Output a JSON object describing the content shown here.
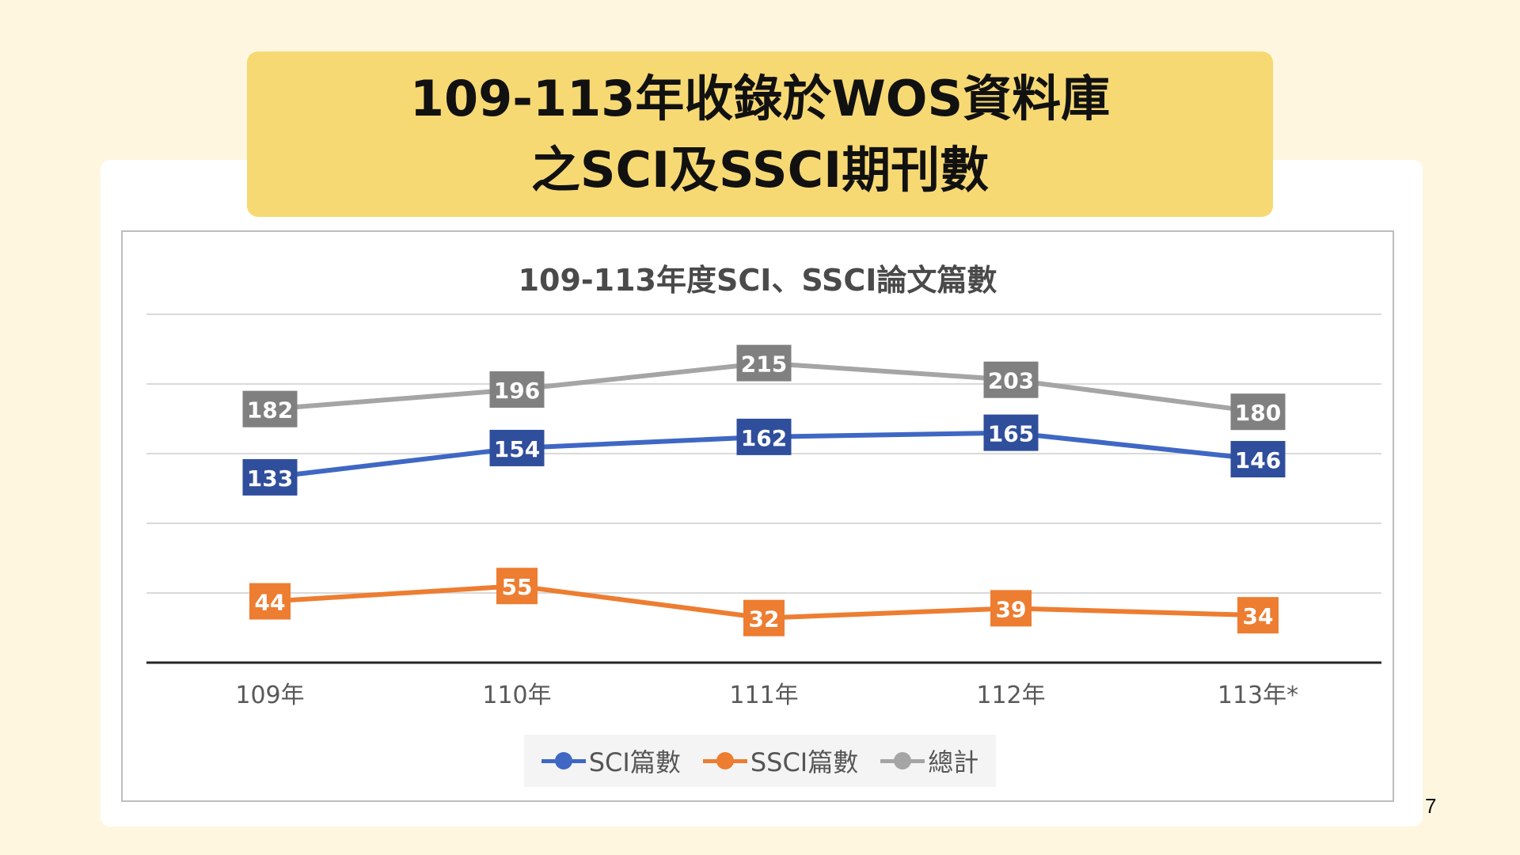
{
  "slide": {
    "title_line1": "109-113年收錄於WOS資料庫",
    "title_line2": "之SCI及SSCI期刊數",
    "page_number": "7"
  },
  "colors": {
    "background": "#FEF6DF",
    "title_box": "#F7D974",
    "sci": "#3F67C4",
    "sci_label": "#2F4E9C",
    "ssci": "#ED7D31",
    "total": "#A5A5A5",
    "total_label": "#808080"
  },
  "chart_data": {
    "type": "line",
    "title": "109-113年度SCI、SSCI論文篇數",
    "categories": [
      "109年",
      "110年",
      "111年",
      "112年",
      "113年*"
    ],
    "series": [
      {
        "name": "SCI篇數",
        "values": [
          133,
          154,
          162,
          165,
          146
        ],
        "color": "#3F67C4"
      },
      {
        "name": "SSCI篇數",
        "values": [
          44,
          55,
          32,
          39,
          34
        ],
        "color": "#ED7D31"
      },
      {
        "name": "總計",
        "values": [
          182,
          196,
          215,
          203,
          180
        ],
        "color": "#A5A5A5"
      }
    ],
    "ylim": [
      0,
      250
    ],
    "grid": true,
    "data_labels": true,
    "legend": "bottom"
  }
}
